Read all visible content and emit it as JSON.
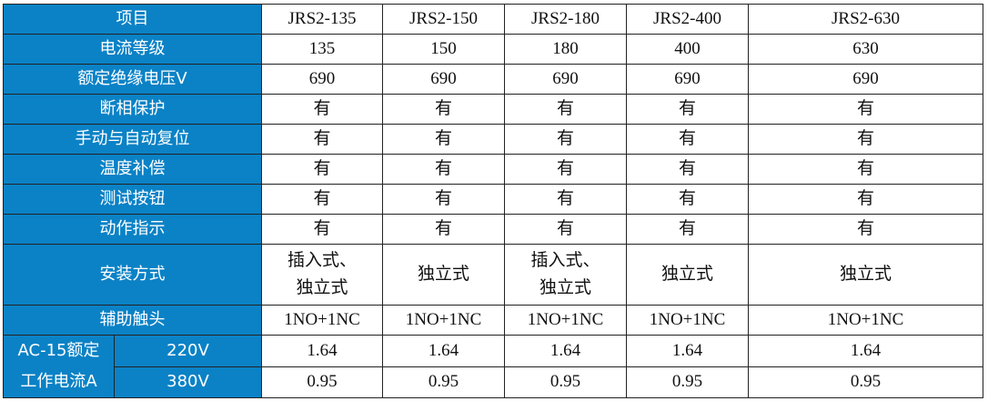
{
  "header": {
    "label": "项目",
    "models": [
      "JRS2-135",
      "JRS2-150",
      "JRS2-180",
      "JRS2-400",
      "JRS2-630"
    ]
  },
  "rows": [
    {
      "label": "电流等级",
      "values": [
        "135",
        "150",
        "180",
        "400",
        "630"
      ]
    },
    {
      "label": "额定绝缘电压V",
      "values": [
        "690",
        "690",
        "690",
        "690",
        "690"
      ]
    },
    {
      "label": "断相保护",
      "values": [
        "有",
        "有",
        "有",
        "有",
        "有"
      ]
    },
    {
      "label": "手动与自动复位",
      "values": [
        "有",
        "有",
        "有",
        "有",
        "有"
      ]
    },
    {
      "label": "温度补偿",
      "values": [
        "有",
        "有",
        "有",
        "有",
        "有"
      ]
    },
    {
      "label": "测试按钮",
      "values": [
        "有",
        "有",
        "有",
        "有",
        "有"
      ]
    },
    {
      "label": "动作指示",
      "values": [
        "有",
        "有",
        "有",
        "有",
        "有"
      ]
    },
    {
      "label": "安装方式",
      "values": [
        "插入式、独立式",
        "独立式",
        "插入式、独立式",
        "独立式",
        "独立式"
      ]
    },
    {
      "label": "辅助触头",
      "values": [
        "1NO+1NC",
        "1NO+1NC",
        "1NO+1NC",
        "1NO+1NC",
        "1NO+1NC"
      ]
    }
  ],
  "ac15": {
    "label": "AC-15额定工作电流A",
    "sub": [
      {
        "voltage": "220V",
        "values": [
          "1.64",
          "1.64",
          "1.64",
          "1.64",
          "1.64"
        ]
      },
      {
        "voltage": "380V",
        "values": [
          "0.95",
          "0.95",
          "0.95",
          "0.95",
          "0.95"
        ]
      }
    ]
  },
  "colors": {
    "label_bg": "#0b82c6",
    "label_text": "#ffffff",
    "border": "#222222"
  }
}
